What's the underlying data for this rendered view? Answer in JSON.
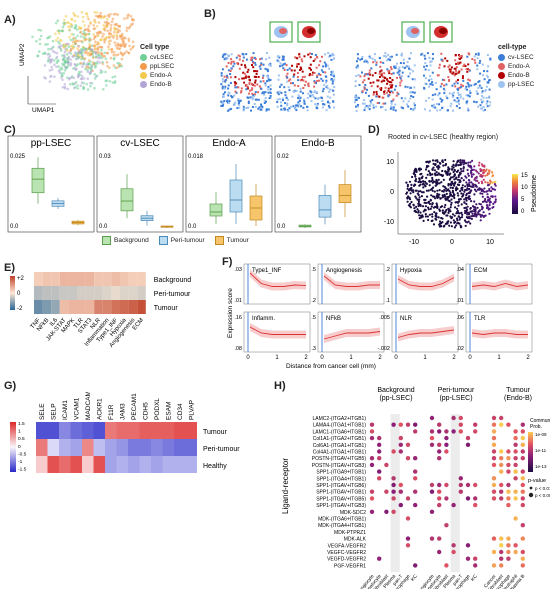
{
  "panels": {
    "a": "A)",
    "b": "B)",
    "c": "C)",
    "d": "D)",
    "e": "E)",
    "f": "F)",
    "g": "G)",
    "h": "H)"
  },
  "panel_a": {
    "xlabel": "UMAP1",
    "ylabel": "UMAP2",
    "legend_title": "Cell type",
    "legend": [
      {
        "label": "cvLSEC",
        "color": "#6fcf97"
      },
      {
        "label": "ppLSEC",
        "color": "#f2994a"
      },
      {
        "label": "Endo-A",
        "color": "#f2c94c"
      },
      {
        "label": "Endo-B",
        "color": "#b3a4d6"
      }
    ]
  },
  "panel_b": {
    "legend_title": "cell-type",
    "legend": [
      {
        "label": "cv-LSEC",
        "color": "#3b7dd8"
      },
      {
        "label": "Endo-A",
        "color": "#e06363"
      },
      {
        "label": "Endo-B",
        "color": "#b00000"
      },
      {
        "label": "pp-LSEC",
        "color": "#9ec3f0"
      }
    ]
  },
  "panel_c": {
    "chart_data": [
      {
        "type": "box",
        "title": "pp-LSEC",
        "ytick_top": "0.025",
        "ytick_bottom": "0.0",
        "boxes": [
          {
            "group": "Background",
            "q1": 0.013,
            "median": 0.018,
            "q3": 0.022,
            "lo": 0.009,
            "hi": 0.026
          },
          {
            "group": "Peri-tumour",
            "q1": 0.008,
            "median": 0.009,
            "q3": 0.01,
            "lo": 0.007,
            "hi": 0.011
          },
          {
            "group": "Tumour",
            "q1": 0.0015,
            "median": 0.002,
            "q3": 0.0025,
            "lo": 0.001,
            "hi": 0.003
          }
        ],
        "ymax": 0.028
      },
      {
        "type": "box",
        "title": "cv-LSEC",
        "ytick_top": "0.03",
        "ytick_bottom": "0.0",
        "boxes": [
          {
            "group": "Background",
            "q1": 0.007,
            "median": 0.011,
            "q3": 0.016,
            "lo": 0.004,
            "hi": 0.022
          },
          {
            "group": "Peri-tumour",
            "q1": 0.003,
            "median": 0.004,
            "q3": 0.005,
            "lo": 0.001,
            "hi": 0.007
          },
          {
            "group": "Tumour",
            "q1": 0.0003,
            "median": 0.0005,
            "q3": 0.0008,
            "lo": 0.0,
            "hi": 0.001
          }
        ],
        "ymax": 0.031
      },
      {
        "type": "box",
        "title": "Endo-A",
        "ytick_top": "0.018",
        "ytick_bottom": "0.0",
        "boxes": [
          {
            "group": "Background",
            "q1": 0.003,
            "median": 0.004,
            "q3": 0.006,
            "lo": 0.001,
            "hi": 0.009
          },
          {
            "group": "Peri-tumour",
            "q1": 0.004,
            "median": 0.007,
            "q3": 0.012,
            "lo": 0.001,
            "hi": 0.016
          },
          {
            "group": "Tumour",
            "q1": 0.002,
            "median": 0.005,
            "q3": 0.008,
            "lo": 0.0005,
            "hi": 0.011
          }
        ],
        "ymax": 0.019
      },
      {
        "type": "box",
        "title": "Endo-B",
        "ytick_top": "0.02",
        "ytick_bottom": "0.0",
        "boxes": [
          {
            "group": "Background",
            "q1": 0.0003,
            "median": 0.0005,
            "q3": 0.0008,
            "lo": 0.0,
            "hi": 0.001
          },
          {
            "group": "Peri-tumour",
            "q1": 0.003,
            "median": 0.005,
            "q3": 0.009,
            "lo": 0.001,
            "hi": 0.012
          },
          {
            "group": "Tumour",
            "q1": 0.007,
            "median": 0.009,
            "q3": 0.012,
            "lo": 0.003,
            "hi": 0.016
          }
        ],
        "ymax": 0.021
      }
    ],
    "legend": [
      {
        "label": "Background",
        "color": "#b9e3b0"
      },
      {
        "label": "Peri-tumour",
        "color": "#bcdcf2"
      },
      {
        "label": "Tumour",
        "color": "#f6c46a"
      }
    ]
  },
  "panel_d": {
    "title": "Rooted in cv-LSEC (healthy region)",
    "yticks": [
      "10",
      "0",
      "-10"
    ],
    "xticks": [
      "-10",
      "0",
      "10"
    ],
    "colorbar_label": "Pseudotime",
    "colorbar_ticks": [
      "15",
      "10",
      "5",
      "0"
    ]
  },
  "panel_e": {
    "chart_data": {
      "type": "heatmap",
      "rows": [
        "Background",
        "Peri-tumour",
        "Tumour"
      ],
      "cols": [
        "TNF",
        "NFkB",
        "IL6",
        "JAK-STAT",
        "MAPK",
        "TLR",
        "STAT3",
        "NLR",
        "Inflammation",
        "Type1_INF",
        "Hypoxia",
        "Angiogenesis",
        "ECM"
      ],
      "values": [
        [
          0.3,
          0.4,
          0.4,
          0.6,
          0.6,
          0.6,
          0.6,
          0.4,
          0.4,
          0.5,
          0.4,
          0.3,
          0.3
        ],
        [
          -0.7,
          -0.6,
          -0.6,
          -0.5,
          -0.5,
          -0.4,
          -0.4,
          -0.4,
          -0.3,
          -0.2,
          -0.3,
          -0.3,
          -0.4
        ],
        [
          -1.4,
          -1.2,
          -1.0,
          0.5,
          0.6,
          0.6,
          0.6,
          1.2,
          1.2,
          1.4,
          1.5,
          1.6,
          1.8
        ]
      ],
      "scale_ticks": [
        "+2",
        "0",
        "-2"
      ]
    }
  },
  "panel_f": {
    "ylabel": "Expression score",
    "xlabel": "Distance from cancer cell (mm)",
    "chart_data": [
      {
        "type": "line",
        "title": "Type1_INF",
        "ytick_top": ".03",
        "ytick_bottom": ".01",
        "trend": [
          0.9,
          0.55,
          0.45,
          0.45,
          0.5,
          0.48
        ],
        "row": 0,
        "col": 0
      },
      {
        "type": "line",
        "title": "Angiogenesis",
        "ytick_top": ".5",
        "ytick_bottom": ".2",
        "trend": [
          0.8,
          0.5,
          0.45,
          0.45,
          0.5,
          0.5
        ],
        "row": 0,
        "col": 1
      },
      {
        "type": "line",
        "title": "Hypoxia",
        "ytick_top": ".2",
        "ytick_bottom": ".1",
        "trend": [
          0.7,
          0.5,
          0.45,
          0.45,
          0.55,
          0.75
        ],
        "row": 0,
        "col": 2
      },
      {
        "type": "line",
        "title": "ECM",
        "ytick_top": ".04",
        "ytick_bottom": ".01",
        "trend": [
          0.45,
          0.5,
          0.45,
          0.55,
          0.45,
          0.5
        ],
        "row": 0,
        "col": 3
      },
      {
        "type": "line",
        "title": "Inflamm.",
        "ytick_top": ".16",
        "ytick_bottom": ".08",
        "trend": [
          0.7,
          0.5,
          0.45,
          0.45,
          0.45,
          0.45
        ],
        "row": 1,
        "col": 0
      },
      {
        "type": "line",
        "title": "NFkB",
        "ytick_top": ".5",
        "ytick_bottom": ".3",
        "trend": [
          0.3,
          0.4,
          0.5,
          0.5,
          0.5,
          0.55
        ],
        "row": 1,
        "col": 1
      },
      {
        "type": "line",
        "title": "NLR",
        "ytick_top": ".005",
        "ytick_bottom": "-.002",
        "trend": [
          0.35,
          0.45,
          0.5,
          0.5,
          0.55,
          0.6
        ],
        "row": 1,
        "col": 2
      },
      {
        "type": "line",
        "title": "TLR",
        "ytick_top": ".06",
        "ytick_bottom": ".02",
        "trend": [
          0.5,
          0.45,
          0.5,
          0.5,
          0.45,
          0.45
        ],
        "row": 1,
        "col": 3
      }
    ],
    "xticks": [
      "0",
      "1",
      "2"
    ]
  },
  "panel_g": {
    "chart_data": {
      "type": "heatmap",
      "cols": [
        "SELE",
        "SELP",
        "ICAM1",
        "VCAM1",
        "MADCAM1",
        "ACKR1",
        "F11R",
        "JAM3",
        "PECAM1",
        "CDH5",
        "PODXL",
        "ESAM",
        "CD34",
        "PLVAP"
      ],
      "rows": [
        "Tumour",
        "Peri-tumour",
        "Healthy"
      ],
      "values": [
        [
          -1.2,
          -1.2,
          -0.8,
          -1.0,
          -1.1,
          -1.2,
          0.9,
          1.0,
          1.0,
          1.1,
          1.1,
          1.1,
          1.2,
          1.2
        ],
        [
          0.9,
          -0.2,
          -0.5,
          -0.6,
          0.8,
          -0.4,
          -0.6,
          -0.7,
          -0.9,
          -0.9,
          -0.8,
          -0.9,
          -1.0,
          -1.0
        ],
        [
          0.3,
          1.2,
          1.0,
          1.2,
          0.3,
          1.2,
          -0.6,
          -0.5,
          -0.6,
          -0.5,
          -0.6,
          -0.5,
          -0.5,
          -0.5
        ]
      ],
      "scale_ticks": [
        "1.5",
        "1",
        "0.5",
        "0",
        "-0.5",
        "-1",
        "-1.5"
      ]
    }
  },
  "panel_h": {
    "ylabel": "Ligand-receptor",
    "groups": [
      {
        "title": "Background",
        "subtitle": "(pp-LSEC)"
      },
      {
        "title": "Peri-tumour",
        "subtitle": "(pp-LSEC)"
      },
      {
        "title": "Tumour",
        "subtitle": "(Endo-B)"
      }
    ],
    "pairs": [
      "LAMC2-(ITGA2+ITGB1)",
      "LAMA4-(ITGA1+ITGB1)",
      "LAMC1-(ITGA6+ITGB1)",
      "Col1A1-(ITGA2+ITGB1)",
      "Col6A1-(ITGA1+ITGB1)",
      "Col4A1-(ITGA1+ITGB1)",
      "POSTN-(ITGAV+ITGB5)",
      "POSTN-(ITGAV+ITGB3)",
      "SPP1-(ITGA9+ITGB1)",
      "SPP1-(ITGA4+ITGB1)",
      "SPP1-(ITGAV+ITGB6)",
      "SPP1-(ITGAV+ITGB1)",
      "SPP1-(ITGAV+ITGB5)",
      "SPP1-(ITGAV+ITGB3)",
      "MDK-SDC2",
      "MDK-(ITGA6+ITGB1)",
      "MDK-(ITGA4+ITGB1)",
      "MDK-PTPRZ1",
      "MDK-ALK",
      "VEGFA-VEGFR2",
      "VEGFC-VEGFR2",
      "VEGFD-VEGFR2",
      "PGF-VEGFR1"
    ],
    "bg_senders": [
      "Cholangiocyte",
      "Hepatocyte",
      "Fibroblast",
      "Plasma",
      "pan-T",
      "Macrophage",
      "KC"
    ],
    "pt_senders": [
      "Cholangiocyte",
      "Hepatocyte",
      "Fibroblast",
      "Plasma",
      "pan-T",
      "Macrophage",
      "KC"
    ],
    "tu_senders": [
      "Cancer",
      "Fibroblast",
      "Macrophage",
      "Neutrophil",
      "Plasma B"
    ],
    "colorbar_title": "Commun. Prob.",
    "colorbar_ticks": [
      "1e-09",
      "1e-11",
      "1e-13"
    ],
    "pvalue_title": "p-value",
    "pvalue_items": [
      "p < 0.01",
      "p < 0.001"
    ]
  }
}
